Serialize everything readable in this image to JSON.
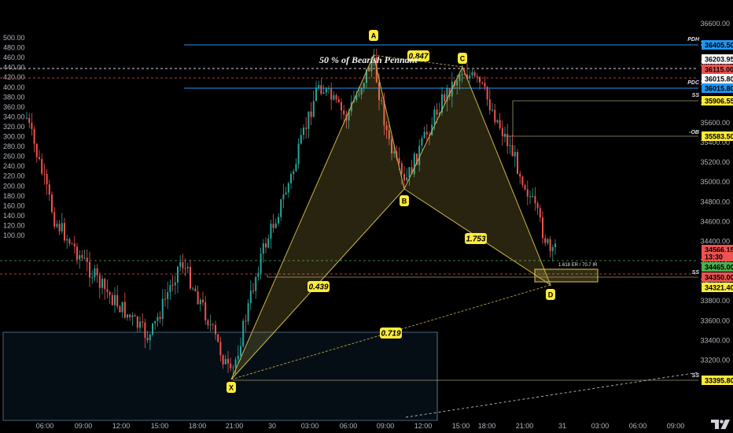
{
  "chart_data": {
    "type": "candlestick",
    "left_axis": {
      "ticks": [
        "500.00",
        "480.00",
        "460.00",
        "440.00",
        "420.00",
        "400.00",
        "380.00",
        "360.00",
        "340.00",
        "320.00",
        "300.00",
        "280.00",
        "260.00",
        "240.00",
        "220.00",
        "200.00",
        "180.00",
        "160.00",
        "140.00",
        "120.00",
        "100.00"
      ]
    },
    "right_axis": {
      "ticks": [
        "36600.00",
        "36400.00",
        "36200.00",
        "36000.00",
        "35800.00",
        "35600.00",
        "35400.00",
        "35200.00",
        "35000.00",
        "34800.00",
        "34600.00",
        "34400.00",
        "34200.00",
        "34000.00",
        "33800.00",
        "33600.00",
        "33400.00",
        "33200.00"
      ]
    },
    "x_axis": {
      "ticks": [
        "06:00",
        "09:00",
        "12:00",
        "15:00",
        "18:00",
        "21:00",
        "30",
        "03:00",
        "06:00",
        "09:00",
        "12:00",
        "15:00",
        "18:00",
        "21:00",
        "31",
        "03:00",
        "06:00",
        "09:00"
      ]
    },
    "pattern_points": {
      "X": "X",
      "A": "A",
      "B": "B",
      "C": "C",
      "D": "D"
    },
    "ratios": {
      "xb": "0.439",
      "ac": "0.847",
      "bd": "1.753",
      "xd": "0.719"
    },
    "annotation": "50 % of Bearish Pennant",
    "completion_note": "1.618 ER / 70.7 IR",
    "side_labels": {
      "pdh": "PDH",
      "pdc": "PDC",
      "ss1": "SS",
      "ob": "-OB",
      "ss2": "SS",
      "ss3": "SS"
    },
    "price_labels": [
      {
        "text": "36405.50",
        "bg": "#2196f3",
        "fg": "#ffffff"
      },
      {
        "text": "36203.95",
        "bg": "#ffffff",
        "fg": "#000000"
      },
      {
        "text": "36115.00",
        "bg": "#ef5350",
        "fg": "#ffffff"
      },
      {
        "text": "36015.80",
        "bg": "#ffffff",
        "fg": "#000000"
      },
      {
        "text": "36015.80",
        "bg": "#2196f3",
        "fg": "#ffffff"
      },
      {
        "text": "35906.55",
        "bg": "#ffeb3b",
        "fg": "#000000"
      },
      {
        "text": "35583.50",
        "bg": "#ffeb3b",
        "fg": "#000000"
      },
      {
        "text": "34566.15",
        "bg": "#ef5350",
        "fg": "#ffffff"
      },
      {
        "text": "13:30",
        "bg": "#ef5350",
        "fg": "#ffffff"
      },
      {
        "text": "34465.00",
        "bg": "#4caf50",
        "fg": "#ffffff"
      },
      {
        "text": "34350.00",
        "bg": "#ef5350",
        "fg": "#ffffff"
      },
      {
        "text": "34321.40",
        "bg": "#ffeb3b",
        "fg": "#000000"
      },
      {
        "text": "33395.80",
        "bg": "#ffeb3b",
        "fg": "#000000"
      }
    ],
    "colors": {
      "up": "#26a69a",
      "down": "#ef5350",
      "pattern": "#c8b44a",
      "level_blue": "#2196f3",
      "marker": "#ffeb3b"
    },
    "grid": false
  }
}
